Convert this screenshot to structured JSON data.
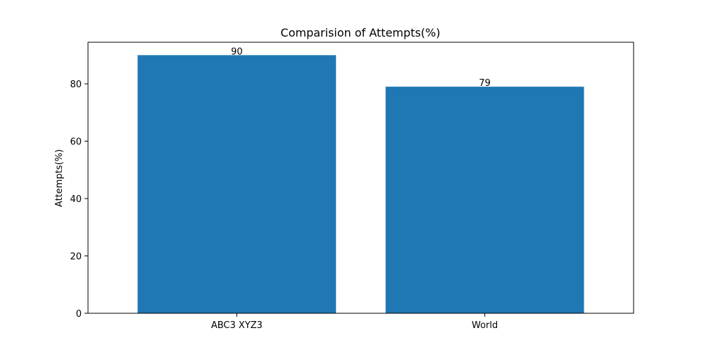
{
  "chart_data": {
    "type": "bar",
    "title": "Comparision of Attempts(%)",
    "xlabel": "",
    "ylabel": "Attempts(%)",
    "categories": [
      "ABC3 XYZ3",
      "World"
    ],
    "values": [
      90,
      79
    ],
    "data_labels": [
      "90",
      "79"
    ],
    "ylim": [
      0,
      94.5
    ],
    "yticks": [
      0,
      20,
      40,
      60,
      80
    ],
    "ytick_labels": [
      "0",
      "20",
      "40",
      "60",
      "80"
    ],
    "grid": false,
    "legend": "none",
    "bar_color": "#1f77b4"
  }
}
